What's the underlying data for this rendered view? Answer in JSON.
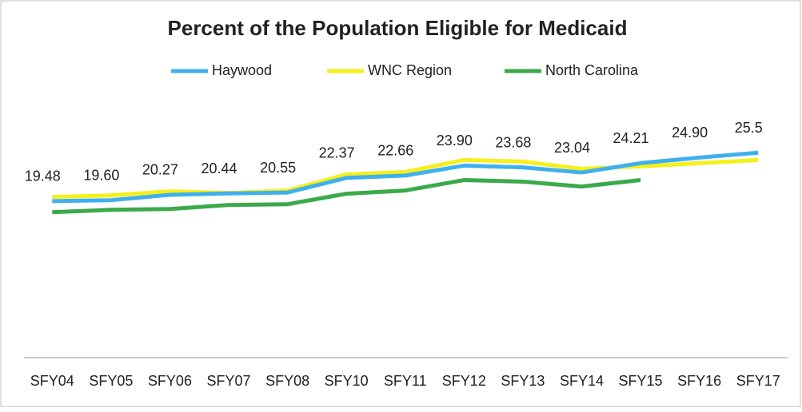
{
  "chart_data": {
    "type": "line",
    "title": "Percent of the Population Eligible for Medicaid",
    "categories": [
      "SFY04",
      "SFY05",
      "SFY06",
      "SFY07",
      "SFY08",
      "SFY10",
      "SFY11",
      "SFY12",
      "SFY13",
      "SFY14",
      "SFY15",
      "SFY16",
      "SFY17"
    ],
    "series": [
      {
        "name": "Haywood",
        "color": "#3fb0ee",
        "values": [
          19.48,
          19.6,
          20.27,
          20.44,
          20.55,
          22.37,
          22.66,
          23.9,
          23.68,
          23.04,
          24.21,
          24.9,
          25.5
        ],
        "value_labels": [
          "19.48",
          "19.60",
          "20.27",
          "20.44",
          "20.55",
          "22.37",
          "22.66",
          "23.90",
          "23.68",
          "23.04",
          "24.21",
          "24.90",
          "25.5"
        ]
      },
      {
        "name": "WNC Region",
        "color": "#f5f01a",
        "values": [
          20.0,
          20.2,
          20.7,
          20.5,
          20.8,
          22.8,
          23.1,
          24.6,
          24.4,
          23.5,
          23.8,
          24.2,
          24.6
        ]
      },
      {
        "name": "North Carolina",
        "color": "#3aaa4a",
        "values": [
          18.1,
          18.4,
          18.5,
          19.0,
          19.1,
          20.4,
          20.8,
          22.1,
          21.9,
          21.3,
          22.1,
          null,
          null
        ]
      }
    ],
    "ylim": [
      0,
      30
    ],
    "legend": "top"
  }
}
